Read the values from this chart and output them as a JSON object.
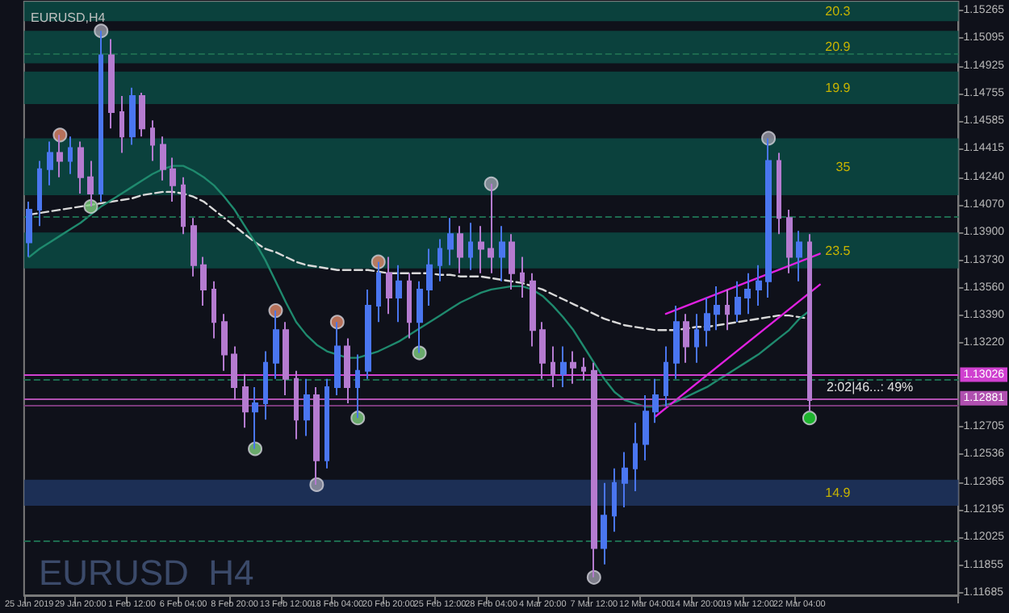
{
  "chart_data": {
    "type": "candlestick",
    "title": "EURUSD,H4",
    "categories": [
      "25 Jan 2019",
      null,
      null,
      null,
      null,
      "29 Jan 20:00",
      null,
      null,
      null,
      null,
      "1 Feb 12:00",
      null,
      null,
      null,
      null,
      "6 Feb 04:00",
      null,
      null,
      null,
      null,
      "8 Feb 20:00",
      null,
      null,
      null,
      null,
      "13 Feb 12:00",
      null,
      null,
      null,
      null,
      "18 Feb 04:00",
      null,
      null,
      null,
      null,
      "20 Feb 20:00",
      null,
      null,
      null,
      null,
      "25 Feb 12:00",
      null,
      null,
      null,
      null,
      "28 Feb 04:00",
      null,
      null,
      null,
      null,
      "4 Mar 20:00",
      null,
      null,
      null,
      null,
      "7 Mar 12:00",
      null,
      null,
      null,
      null,
      "12 Mar 04:00",
      null,
      null,
      null,
      null,
      "14 Mar 20:00",
      null,
      null,
      null,
      null,
      "19 Mar 12:00",
      null,
      null,
      null,
      null,
      "22 Mar 04:00",
      null,
      null,
      null,
      null,
      null,
      null,
      null,
      null,
      null,
      null,
      null,
      null,
      null,
      null,
      null
    ],
    "ohlc": [
      [
        1.1384,
        1.1409,
        1.1375,
        1.1404
      ],
      [
        1.1404,
        1.1434,
        1.1394,
        1.1429
      ],
      [
        1.1429,
        1.1446,
        1.1419,
        1.1439
      ],
      [
        1.1439,
        1.145,
        1.1424,
        1.1434
      ],
      [
        1.1434,
        1.1449,
        1.1426,
        1.1442
      ],
      [
        1.1442,
        1.1446,
        1.1414,
        1.1424
      ],
      [
        1.1424,
        1.1434,
        1.1406,
        1.1414
      ],
      [
        1.1414,
        1.1514,
        1.1409,
        1.1499
      ],
      [
        1.1499,
        1.1509,
        1.1454,
        1.1464
      ],
      [
        1.1464,
        1.1474,
        1.1439,
        1.1449
      ],
      [
        1.1449,
        1.1479,
        1.1444,
        1.1474
      ],
      [
        1.1474,
        1.1476,
        1.1449,
        1.1454
      ],
      [
        1.1454,
        1.1459,
        1.1434,
        1.1444
      ],
      [
        1.1444,
        1.1449,
        1.1422,
        1.1429
      ],
      [
        1.1429,
        1.1436,
        1.1409,
        1.1419
      ],
      [
        1.1419,
        1.1424,
        1.1389,
        1.1394
      ],
      [
        1.1394,
        1.1399,
        1.1363,
        1.137
      ],
      [
        1.137,
        1.1375,
        1.1345,
        1.1355
      ],
      [
        1.1355,
        1.136,
        1.1325,
        1.1335
      ],
      [
        1.1335,
        1.134,
        1.1305,
        1.1315
      ],
      [
        1.1315,
        1.132,
        1.1287,
        1.1295
      ],
      [
        1.1295,
        1.1303,
        1.127,
        1.128
      ],
      [
        1.128,
        1.1295,
        1.1257,
        1.1285
      ],
      [
        1.1285,
        1.1317,
        1.1275,
        1.131
      ],
      [
        1.131,
        1.1342,
        1.13,
        1.133
      ],
      [
        1.133,
        1.1335,
        1.129,
        1.13
      ],
      [
        1.13,
        1.1305,
        1.1263,
        1.1275
      ],
      [
        1.1275,
        1.13,
        1.1265,
        1.129
      ],
      [
        1.129,
        1.1295,
        1.1235,
        1.125
      ],
      [
        1.125,
        1.13,
        1.1245,
        1.1295
      ],
      [
        1.1295,
        1.1335,
        1.129,
        1.132
      ],
      [
        1.132,
        1.1325,
        1.1285,
        1.1295
      ],
      [
        1.1295,
        1.1315,
        1.1276,
        1.1305
      ],
      [
        1.1305,
        1.1355,
        1.13,
        1.1345
      ],
      [
        1.1345,
        1.1372,
        1.1335,
        1.1365
      ],
      [
        1.1365,
        1.1375,
        1.134,
        1.135
      ],
      [
        1.135,
        1.137,
        1.1335,
        1.136
      ],
      [
        1.136,
        1.1365,
        1.1325,
        1.1335
      ],
      [
        1.1335,
        1.136,
        1.1316,
        1.1355
      ],
      [
        1.1355,
        1.138,
        1.1345,
        1.137
      ],
      [
        1.137,
        1.1386,
        1.136,
        1.138
      ],
      [
        1.138,
        1.1399,
        1.137,
        1.1389
      ],
      [
        1.1389,
        1.1394,
        1.1365,
        1.1375
      ],
      [
        1.1375,
        1.1396,
        1.1367,
        1.1384
      ],
      [
        1.1384,
        1.1394,
        1.1365,
        1.138
      ],
      [
        1.138,
        1.142,
        1.1365,
        1.1375
      ],
      [
        1.1375,
        1.1394,
        1.136,
        1.1384
      ],
      [
        1.1384,
        1.1389,
        1.1355,
        1.1365
      ],
      [
        1.1365,
        1.1375,
        1.135,
        1.136
      ],
      [
        1.136,
        1.1365,
        1.132,
        1.133
      ],
      [
        1.133,
        1.1335,
        1.13,
        1.131
      ],
      [
        1.131,
        1.132,
        1.1295,
        1.1303
      ],
      [
        1.1303,
        1.132,
        1.1295,
        1.131
      ],
      [
        1.131,
        1.1317,
        1.1297,
        1.1307
      ],
      [
        1.1307,
        1.1313,
        1.1299,
        1.1305
      ],
      [
        1.1305,
        1.131,
        1.1178,
        1.1196
      ],
      [
        1.1196,
        1.1236,
        1.1186,
        1.1216
      ],
      [
        1.1216,
        1.1245,
        1.1206,
        1.1236
      ],
      [
        1.1236,
        1.1255,
        1.1221,
        1.1245
      ],
      [
        1.1245,
        1.1273,
        1.1231,
        1.126
      ],
      [
        1.126,
        1.129,
        1.125,
        1.128
      ],
      [
        1.128,
        1.13,
        1.1273,
        1.129
      ],
      [
        1.129,
        1.132,
        1.1283,
        1.131
      ],
      [
        1.131,
        1.1345,
        1.13,
        1.1335
      ],
      [
        1.1335,
        1.134,
        1.131,
        1.132
      ],
      [
        1.132,
        1.134,
        1.131,
        1.133
      ],
      [
        1.133,
        1.135,
        1.132,
        1.134
      ],
      [
        1.134,
        1.1357,
        1.133,
        1.1345
      ],
      [
        1.1345,
        1.1355,
        1.133,
        1.134
      ],
      [
        1.134,
        1.136,
        1.1335,
        1.135
      ],
      [
        1.135,
        1.1365,
        1.134,
        1.1355
      ],
      [
        1.1355,
        1.137,
        1.1345,
        1.136
      ],
      [
        1.136,
        1.1448,
        1.135,
        1.1434
      ],
      [
        1.1434,
        1.1439,
        1.1389,
        1.1399
      ],
      [
        1.1399,
        1.1404,
        1.1365,
        1.1375
      ],
      [
        1.1375,
        1.1391,
        1.136,
        1.1384
      ],
      [
        1.1384,
        1.1389,
        1.128,
        1.1287
      ],
      null,
      null,
      null,
      null,
      null,
      null,
      null,
      null,
      null,
      null,
      null,
      null,
      null,
      null
    ],
    "colors": [
      "#4a76f0",
      "#4a76f0",
      "#4a76f0",
      "#b57bd0",
      "#4a76f0",
      "#b57bd0",
      "#b57bd0",
      "#4a76f0",
      "#b57bd0",
      "#b57bd0",
      "#4a76f0",
      "#b57bd0",
      "#b57bd0",
      "#b57bd0",
      "#b57bd0",
      "#b57bd0",
      "#b57bd0",
      "#b57bd0",
      "#b57bd0",
      "#b57bd0",
      "#b57bd0",
      "#b57bd0",
      "#4a76f0",
      "#4a76f0",
      "#4a76f0",
      "#b57bd0",
      "#b57bd0",
      "#4a76f0",
      "#b57bd0",
      "#4a76f0",
      "#4a76f0",
      "#b57bd0",
      "#4a76f0",
      "#4a76f0",
      "#4a76f0",
      "#b57bd0",
      "#4a76f0",
      "#b57bd0",
      "#4a76f0",
      "#4a76f0",
      "#4a76f0",
      "#4a76f0",
      "#b57bd0",
      "#4a76f0",
      "#b57bd0",
      "#b57bd0",
      "#4a76f0",
      "#b57bd0",
      "#b57bd0",
      "#b57bd0",
      "#b57bd0",
      "#b57bd0",
      "#4a76f0",
      "#b57bd0",
      "#b57bd0",
      "#b57bd0",
      "#4a76f0",
      "#4a76f0",
      "#4a76f0",
      "#4a76f0",
      "#4a76f0",
      "#4a76f0",
      "#4a76f0",
      "#4a76f0",
      "#b57bd0",
      "#4a76f0",
      "#4a76f0",
      "#4a76f0",
      "#b57bd0",
      "#4a76f0",
      "#4a76f0",
      "#4a76f0",
      "#4a76f0",
      "#b57bd0",
      "#b57bd0",
      "#4a76f0",
      "#b57bd0",
      null,
      null,
      null,
      null,
      null,
      null,
      null,
      null,
      null,
      null,
      null,
      null,
      null,
      null
    ],
    "ylim": [
      1.1167,
      1.1532
    ],
    "yticks": [
      1.15265,
      1.15095,
      1.14925,
      1.14755,
      1.14585,
      1.14415,
      {
        "value": 1.1424,
        "label": "1.14240"
      },
      {
        "value": 1.1407,
        "label": "1.14070"
      },
      {
        "value": 1.139,
        "label": "1.13900"
      },
      {
        "value": 1.1373,
        "label": "1.13730"
      },
      {
        "value": 1.1356,
        "label": "1.13560"
      },
      {
        "value": 1.1339,
        "label": "1.13390"
      },
      {
        "value": 1.1322,
        "label": "1.13220"
      },
      1.12705,
      1.12536,
      1.12365,
      1.12195,
      1.12025,
      1.11855,
      1.11685
    ],
    "grid": false,
    "series": [
      {
        "type": "line",
        "color": "#d9d9d9",
        "line_style": "dashed",
        "marker": "none",
        "values": [
          1.1401,
          1.1402,
          1.1403,
          1.1404,
          1.1405,
          1.1406,
          1.1407,
          1.1408,
          1.1409,
          1.141,
          1.1411,
          1.1413,
          1.1414,
          1.1415,
          1.1415,
          1.1414,
          1.1412,
          1.1409,
          1.1404,
          1.1399,
          1.1394,
          1.1389,
          1.1384,
          1.138,
          1.1378,
          1.1375,
          1.1372,
          1.137,
          1.1369,
          1.1368,
          1.1367,
          1.1367,
          1.1367,
          1.1367,
          1.1366,
          1.1365,
          1.1365,
          1.1365,
          1.1365,
          1.1365,
          1.1364,
          1.1364,
          1.1363,
          1.1363,
          1.1363,
          1.1362,
          1.1361,
          1.136,
          1.1359,
          1.1357,
          1.1355,
          1.1352,
          1.1349,
          1.1346,
          1.1343,
          1.134,
          1.1337,
          1.1335,
          1.1333,
          1.1332,
          1.1331,
          1.133,
          1.133,
          1.133,
          1.1331,
          1.1332,
          1.1332,
          1.1333,
          1.1334,
          1.1335,
          1.1336,
          1.1337,
          1.1338,
          1.1339,
          1.1339,
          1.1338,
          1.1337,
          null,
          null,
          null,
          null,
          null,
          null,
          null,
          null,
          null,
          null,
          null,
          null,
          null,
          null
        ]
      },
      {
        "type": "line",
        "color": "#1f8a6e",
        "line_style": "solid",
        "marker": "none",
        "values": [
          1.1375,
          1.138,
          1.1384,
          1.1388,
          1.1392,
          1.1396,
          1.1401,
          1.1406,
          1.141,
          1.1414,
          1.1418,
          1.1422,
          1.1426,
          1.1429,
          1.1431,
          1.1431,
          1.1428,
          1.1424,
          1.1419,
          1.1412,
          1.1404,
          1.1394,
          1.1384,
          1.1373,
          1.136,
          1.1347,
          1.1335,
          1.1327,
          1.1321,
          1.1317,
          1.1315,
          1.1313,
          1.1313,
          1.1315,
          1.1317,
          1.132,
          1.1323,
          1.1327,
          1.1331,
          1.1335,
          1.1339,
          1.1343,
          1.1347,
          1.135,
          1.1353,
          1.1355,
          1.1356,
          1.1357,
          1.1357,
          1.1355,
          1.1351,
          1.1345,
          1.1338,
          1.133,
          1.132,
          1.131,
          1.13,
          1.1292,
          1.1287,
          1.1285,
          1.1283,
          1.1283,
          1.1284,
          1.1286,
          1.1289,
          1.1292,
          1.1295,
          1.1299,
          1.1303,
          1.1307,
          1.1311,
          1.1315,
          1.132,
          1.1325,
          1.133,
          1.1337,
          1.1342,
          null,
          null,
          null,
          null,
          null,
          null,
          null,
          null,
          null,
          null,
          null,
          null,
          null,
          null
        ]
      },
      {
        "type": "line",
        "color": "#e020e0",
        "line_style": "solid",
        "marker": "none",
        "values": [
          null,
          null,
          null,
          null,
          null,
          null,
          null,
          null,
          null,
          null,
          null,
          null,
          null,
          null,
          null,
          null,
          null,
          null,
          null,
          null,
          null,
          null,
          null,
          null,
          null,
          null,
          null,
          null,
          null,
          null,
          null,
          null,
          null,
          null,
          null,
          null,
          null,
          null,
          null,
          null,
          null,
          null,
          null,
          null,
          null,
          null,
          null,
          null,
          null,
          null,
          null,
          null,
          null,
          null,
          null,
          null,
          null,
          null,
          null,
          null,
          null,
          null,
          1.134,
          null,
          null,
          null,
          null,
          null,
          null,
          null,
          null,
          null,
          null,
          null,
          null,
          null,
          null,
          1.1377,
          null,
          null,
          null,
          null,
          null,
          null,
          null,
          null,
          null,
          null,
          null,
          null,
          null
        ]
      },
      {
        "type": "line",
        "color": "#e020e0",
        "line_style": "solid",
        "marker": "none",
        "values": [
          null,
          null,
          null,
          null,
          null,
          null,
          null,
          null,
          null,
          null,
          null,
          null,
          null,
          null,
          null,
          null,
          null,
          null,
          null,
          null,
          null,
          null,
          null,
          null,
          null,
          null,
          null,
          null,
          null,
          null,
          null,
          null,
          null,
          null,
          null,
          null,
          null,
          null,
          null,
          null,
          null,
          null,
          null,
          null,
          null,
          null,
          null,
          null,
          null,
          null,
          null,
          null,
          null,
          null,
          null,
          null,
          null,
          null,
          null,
          null,
          null,
          1.1277,
          null,
          null,
          null,
          null,
          null,
          null,
          null,
          null,
          null,
          null,
          null,
          null,
          null,
          null,
          null,
          1.1358,
          null,
          null,
          null,
          null,
          null,
          null,
          null,
          null,
          null,
          null,
          null,
          null,
          null
        ]
      },
      {
        "type": "scatter",
        "color": "#9a9aa8",
        "marker": "circle",
        "values": [
          null,
          null,
          null,
          null,
          null,
          null,
          null,
          1.1514,
          null,
          null,
          null,
          null,
          null,
          null,
          null,
          null,
          null,
          null,
          null,
          null,
          null,
          null,
          null,
          null,
          null,
          null,
          null,
          null,
          1.1235,
          null,
          null,
          null,
          null,
          null,
          null,
          null,
          null,
          null,
          null,
          null,
          null,
          null,
          null,
          null,
          null,
          1.142,
          null,
          null,
          null,
          null,
          null,
          null,
          null,
          null,
          null,
          1.1178,
          null,
          null,
          null,
          null,
          null,
          null,
          null,
          null,
          null,
          null,
          null,
          null,
          null,
          null,
          null,
          null,
          1.1448,
          null,
          null,
          null,
          null,
          null,
          null,
          null,
          null,
          null,
          null,
          null,
          null,
          null,
          null,
          null,
          null,
          null,
          null
        ]
      },
      {
        "type": "scatter",
        "color": "#e0896a",
        "marker": "circle",
        "values": [
          null,
          null,
          null,
          1.145,
          null,
          null,
          null,
          null,
          null,
          null,
          null,
          null,
          null,
          null,
          null,
          null,
          null,
          null,
          null,
          null,
          null,
          null,
          null,
          null,
          1.1342,
          null,
          null,
          null,
          null,
          null,
          1.1335,
          null,
          null,
          null,
          1.1372,
          null,
          null,
          null,
          null,
          null,
          null,
          null,
          null,
          null,
          null,
          null,
          null,
          null,
          null,
          null,
          null,
          null,
          null,
          null,
          null,
          null,
          null,
          null,
          null,
          null,
          null,
          null,
          null,
          null,
          null,
          null,
          null,
          null,
          null,
          null,
          null,
          null,
          null,
          null,
          null,
          null,
          null,
          null,
          null,
          null,
          null,
          null,
          null,
          null,
          null,
          null,
          null,
          null,
          null,
          null,
          null
        ]
      },
      {
        "type": "scatter",
        "color": "#7fcf7f",
        "marker": "circle",
        "values": [
          null,
          null,
          null,
          null,
          null,
          null,
          1.1406,
          null,
          null,
          null,
          null,
          null,
          null,
          null,
          null,
          null,
          null,
          null,
          null,
          null,
          null,
          null,
          1.1257,
          null,
          null,
          null,
          null,
          null,
          null,
          null,
          null,
          null,
          1.1276,
          null,
          null,
          null,
          null,
          null,
          1.1316,
          null,
          null,
          null,
          null,
          null,
          null,
          null,
          null,
          null,
          null,
          null,
          null,
          null,
          null,
          null,
          null,
          null,
          null,
          null,
          null,
          null,
          null,
          null,
          null,
          null,
          null,
          null,
          null,
          null,
          null,
          null,
          null,
          null,
          null,
          null,
          null,
          null,
          null,
          null,
          null,
          null,
          null,
          null,
          null,
          null,
          null,
          null,
          null,
          null,
          null,
          null,
          null
        ]
      },
      {
        "type": "scatter",
        "color": "#22dd33",
        "marker": "circle",
        "values": [
          null,
          null,
          null,
          null,
          null,
          null,
          null,
          null,
          null,
          null,
          null,
          null,
          null,
          null,
          null,
          null,
          null,
          null,
          null,
          null,
          null,
          null,
          null,
          null,
          null,
          null,
          null,
          null,
          null,
          null,
          null,
          null,
          null,
          null,
          null,
          null,
          null,
          null,
          null,
          null,
          null,
          null,
          null,
          null,
          null,
          null,
          null,
          null,
          null,
          null,
          null,
          null,
          null,
          null,
          null,
          null,
          null,
          null,
          null,
          null,
          null,
          null,
          null,
          null,
          null,
          null,
          null,
          null,
          null,
          null,
          null,
          null,
          null,
          null,
          null,
          null,
          1.1276,
          null,
          null,
          null,
          null,
          null,
          null,
          null,
          null,
          null,
          null,
          null,
          null,
          null,
          null
        ]
      }
    ],
    "bands": [
      {
        "axis": "y",
        "from": 1.152,
        "to": 1.1532,
        "label": "20.3",
        "color": "#0b4a44"
      },
      {
        "axis": "y",
        "from": 1.1494,
        "to": 1.1514,
        "label": "20.9",
        "color": "#0b4a44"
      },
      {
        "axis": "y",
        "from": 1.1469,
        "to": 1.1489,
        "label": "19.9",
        "color": "#0b4a44"
      },
      {
        "axis": "y",
        "from": 1.1413,
        "to": 1.1448,
        "label": "35",
        "color": "#0b4a44"
      },
      {
        "axis": "y",
        "from": 1.1368,
        "to": 1.139,
        "label": "23.5",
        "color": "#0b4a44"
      },
      {
        "axis": "y",
        "from": 1.1222,
        "to": 1.1238,
        "label": "14.9",
        "color": "#1f3560"
      }
    ],
    "ref_lines": [
      {
        "axis": "y",
        "value": 1.15,
        "label": null,
        "color": "#1d6b4f",
        "line_style": "dashed"
      },
      {
        "axis": "y",
        "value": 1.14,
        "label": null,
        "color": "#1d6b4f",
        "line_style": "dashed"
      },
      {
        "axis": "y",
        "value": 1.13,
        "label": null,
        "color": "#1d6b4f",
        "line_style": "dashed"
      },
      {
        "axis": "y",
        "value": 1.12,
        "label": null,
        "color": "#1d6b4f",
        "line_style": "dashed"
      },
      {
        "axis": "y",
        "value": 1.13026,
        "label": "1.13026",
        "color": "#d040d0",
        "line_style": "solid"
      },
      {
        "axis": "y",
        "value": 1.12881,
        "label": "1.12881",
        "color": "#b050b0",
        "line_style": "solid"
      },
      {
        "axis": "y",
        "value": 1.12836,
        "label": null,
        "color": "#7a3a7a",
        "line_style": "solid"
      }
    ],
    "annotations": [
      "EURUSD  H4",
      "2:02|46...: 49%"
    ]
  }
}
